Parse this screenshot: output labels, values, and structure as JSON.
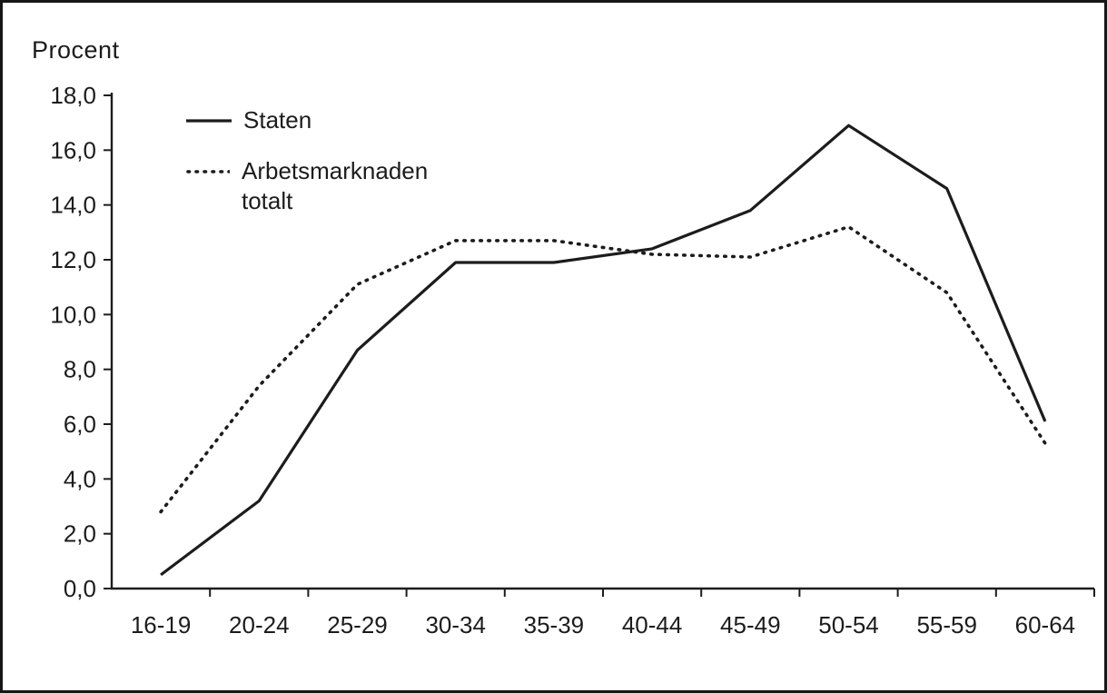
{
  "page": {
    "background": "#ffffff",
    "ink": "#1c1c1c"
  },
  "chart_data": {
    "type": "line",
    "title": "",
    "ylabel": "Procent",
    "xlabel": "",
    "ylim": [
      0,
      18
    ],
    "ytick_step": 2,
    "ytick_labels": [
      "0,0",
      "2,0",
      "4,0",
      "6,0",
      "8,0",
      "10,0",
      "12,0",
      "14,0",
      "16,0",
      "18,0"
    ],
    "categories": [
      "16-19",
      "20-24",
      "25-29",
      "30-34",
      "35-39",
      "40-44",
      "45-49",
      "50-54",
      "55-59",
      "60-64"
    ],
    "series": [
      {
        "name": "Staten",
        "style": "solid",
        "values": [
          0.5,
          3.2,
          8.7,
          11.9,
          11.9,
          12.4,
          13.8,
          16.9,
          14.6,
          6.1
        ]
      },
      {
        "name": "Arbetsmarknaden\ntotalt",
        "style": "dotted",
        "values": [
          2.8,
          7.4,
          11.1,
          12.7,
          12.7,
          12.2,
          12.1,
          13.2,
          10.8,
          5.3
        ]
      }
    ],
    "legend_position": "top-left-inside",
    "grid": false
  }
}
